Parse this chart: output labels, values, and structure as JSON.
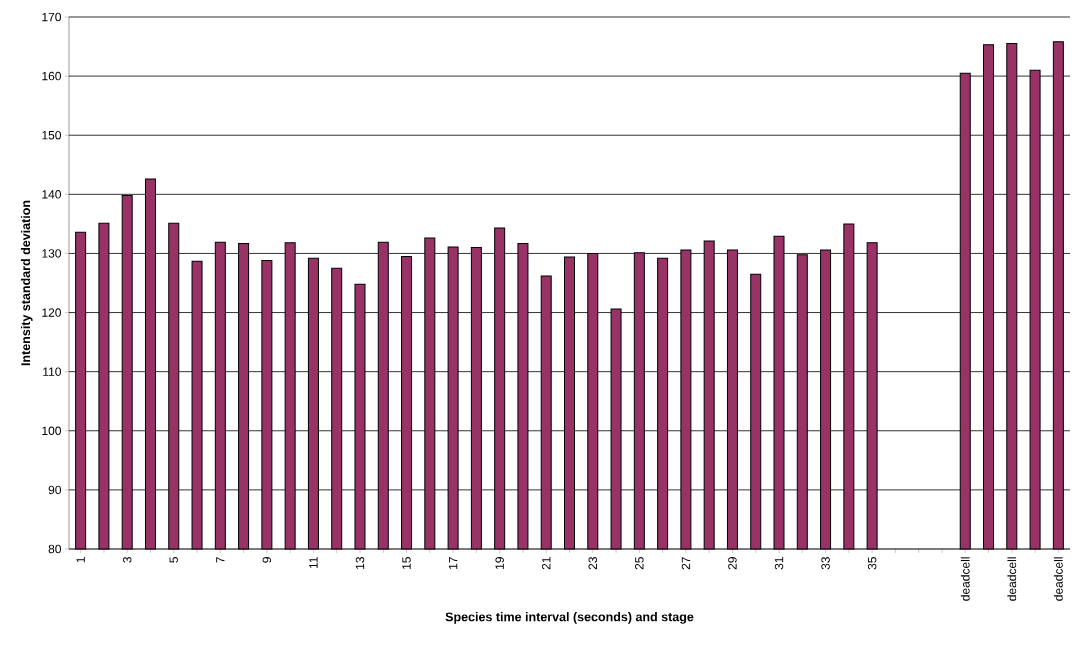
{
  "chart_data": {
    "type": "bar",
    "xlabel": "Species time interval (seconds) and stage",
    "ylabel": "Intensity standard deviation",
    "categories": [
      "1",
      null,
      "3",
      null,
      "5",
      null,
      "7",
      null,
      "9",
      null,
      "11",
      null,
      "13",
      null,
      "15",
      null,
      "17",
      null,
      "19",
      null,
      "21",
      null,
      "23",
      null,
      "25",
      null,
      "27",
      null,
      "29",
      null,
      "31",
      null,
      "33",
      null,
      "35",
      null,
      null,
      null,
      "deadcell",
      null,
      "deadcell",
      null,
      "deadcell"
    ],
    "values": [
      133.6,
      135.1,
      139.8,
      142.6,
      135.1,
      128.7,
      131.9,
      131.7,
      128.8,
      131.8,
      129.2,
      127.5,
      124.8,
      131.9,
      129.5,
      132.6,
      131.1,
      131.0,
      134.3,
      131.7,
      126.2,
      129.4,
      130.0,
      120.6,
      130.1,
      129.2,
      130.6,
      132.1,
      130.6,
      126.5,
      132.9,
      129.8,
      130.6,
      135.0,
      131.8,
      null,
      null,
      null,
      160.5,
      165.3,
      165.5,
      161.0,
      165.8
    ],
    "color": "#993366",
    "ylim": [
      80,
      170
    ],
    "yticks": [
      80,
      90,
      100,
      110,
      120,
      130,
      140,
      150,
      160,
      170
    ],
    "grid": "y"
  }
}
